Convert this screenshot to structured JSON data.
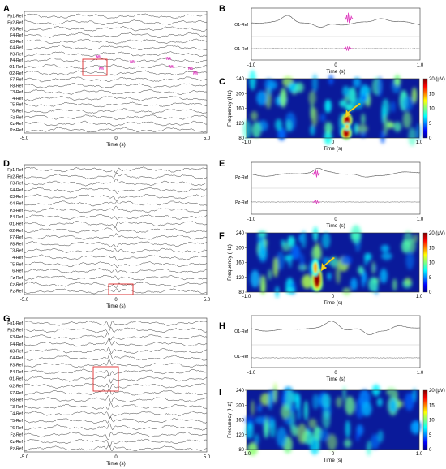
{
  "panels": {
    "A": {
      "letter": "A",
      "channels": [
        "Fp1-Ref",
        "Fp2-Ref",
        "F3-Ref",
        "F4-Ref",
        "C3-Ref",
        "C4-Ref",
        "P3-Ref",
        "P4-Ref",
        "O1-Ref",
        "O2-Ref",
        "F7-Ref",
        "F8-Ref",
        "T3-Ref",
        "T4-Ref",
        "T5-Ref",
        "T6-Ref",
        "Fz-Ref",
        "Cz-Ref",
        "Pz-Ref"
      ],
      "xticks": [
        "-5.0",
        "0",
        "5.0"
      ],
      "xlabel": "Time  (s)"
    },
    "B": {
      "letter": "B",
      "channels": [
        "O1-Ref",
        "O1-Ref"
      ],
      "xticks": [
        "-1.0",
        "0",
        "1.0"
      ],
      "xlabel": "Time  (s)"
    },
    "C": {
      "letter": "C",
      "yticks": [
        "240",
        "200",
        "160",
        "120",
        "80"
      ],
      "ylabel": "Frequency  (Hz)",
      "xticks": [
        "-1.0",
        "0",
        "1.0"
      ],
      "xlabel": "Time  (s)",
      "cbar": [
        "20 (μV)",
        "15",
        "10",
        "5",
        "0"
      ]
    },
    "D": {
      "letter": "D",
      "channels": [
        "Fp1-Ref",
        "Fp2-Ref",
        "F3-Ref",
        "F4-Ref",
        "C3-Ref",
        "C4-Ref",
        "P3-Ref",
        "P4-Ref",
        "O1-Ref",
        "O2-Ref",
        "F7-Ref",
        "F8-Ref",
        "T3-Ref",
        "T4-Ref",
        "T5-Ref",
        "T6-Ref",
        "Fz-Ref",
        "Cz-Ref",
        "Pz-Ref"
      ],
      "xticks": [
        "-5.0",
        "0",
        "5.0"
      ],
      "xlabel": "Time  (s)"
    },
    "E": {
      "letter": "E",
      "channels": [
        "Pz-Ref",
        "Pz-Ref"
      ],
      "xticks": [
        "-1.0",
        "0",
        "1.0"
      ],
      "xlabel": "Time  (s)"
    },
    "F": {
      "letter": "F",
      "yticks": [
        "240",
        "200",
        "160",
        "120",
        "80"
      ],
      "ylabel": "Frequency  (Hz)",
      "xticks": [
        "-1.0",
        "0",
        "1.0"
      ],
      "xlabel": "Time  (s)",
      "cbar": [
        "20 (μV)",
        "15",
        "10",
        "5",
        "0"
      ]
    },
    "G": {
      "letter": "G",
      "channels": [
        "Fp1-Ref",
        "Fp2-Ref",
        "F3-Ref",
        "F4-Ref",
        "C3-Ref",
        "C4-Ref",
        "P3-Ref",
        "P4-Ref",
        "O1-Ref",
        "O2-Ref",
        "F7-Ref",
        "F8-Ref",
        "T3-Ref",
        "T4-Ref",
        "T5-Ref",
        "T6-Ref",
        "Fz-Ref",
        "Cz-Ref",
        "Pz-Ref"
      ],
      "xticks": [
        "-5.0",
        "0",
        "5.0"
      ],
      "xlabel": "Time  (s)"
    },
    "H": {
      "letter": "H",
      "channels": [
        "O1-Ref",
        "O1-Ref"
      ],
      "xticks": [
        "-1.0",
        "0",
        "1.0"
      ],
      "xlabel": "Time  (s)"
    },
    "I": {
      "letter": "I",
      "yticks": [
        "240",
        "200",
        "160",
        "120",
        "80"
      ],
      "ylabel": "Frequency  (Hz)",
      "xticks": [
        "-1.0",
        "0",
        "1.0"
      ],
      "xlabel": "Time  (s)",
      "cbar": [
        "20 (μV)",
        "15",
        "10",
        "5",
        "0"
      ]
    }
  },
  "colors": {
    "trace": "#222222",
    "highlight_box": "#e0292b",
    "ripple": "#e040c0",
    "arrow": "#f5d21f"
  }
}
